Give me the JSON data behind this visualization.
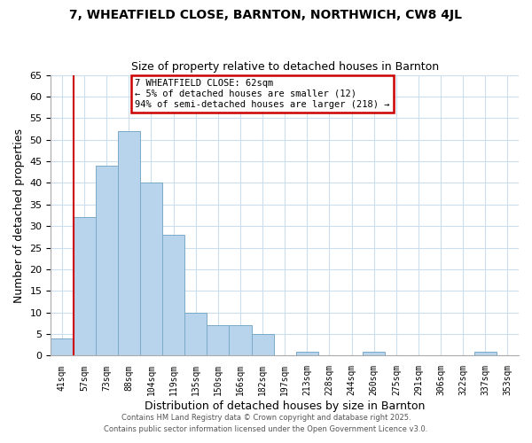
{
  "title": "7, WHEATFIELD CLOSE, BARNTON, NORTHWICH, CW8 4JL",
  "subtitle": "Size of property relative to detached houses in Barnton",
  "xlabel": "Distribution of detached houses by size in Barnton",
  "ylabel": "Number of detached properties",
  "bin_labels": [
    "41sqm",
    "57sqm",
    "73sqm",
    "88sqm",
    "104sqm",
    "119sqm",
    "135sqm",
    "150sqm",
    "166sqm",
    "182sqm",
    "197sqm",
    "213sqm",
    "228sqm",
    "244sqm",
    "260sqm",
    "275sqm",
    "291sqm",
    "306sqm",
    "322sqm",
    "337sqm",
    "353sqm"
  ],
  "bar_heights": [
    4,
    32,
    44,
    52,
    40,
    28,
    10,
    7,
    7,
    5,
    0,
    1,
    0,
    0,
    1,
    0,
    0,
    0,
    0,
    1,
    0
  ],
  "bar_color": "#b8d4ec",
  "bar_edge_color": "#7aaac8",
  "vline_x": 1,
  "vline_color": "#cc0000",
  "ylim": [
    0,
    65
  ],
  "yticks": [
    0,
    5,
    10,
    15,
    20,
    25,
    30,
    35,
    40,
    45,
    50,
    55,
    60,
    65
  ],
  "annotation_title": "7 WHEATFIELD CLOSE: 62sqm",
  "annotation_line1": "← 5% of detached houses are smaller (12)",
  "annotation_line2": "94% of semi-detached houses are larger (218) →",
  "annotation_box_color": "#ffffff",
  "annotation_box_edge": "#cc0000",
  "footer1": "Contains HM Land Registry data © Crown copyright and database right 2025.",
  "footer2": "Contains public sector information licensed under the Open Government Licence v3.0.",
  "bg_color": "#ffffff",
  "plot_bg_color": "#ffffff",
  "grid_color": "#ccddee"
}
